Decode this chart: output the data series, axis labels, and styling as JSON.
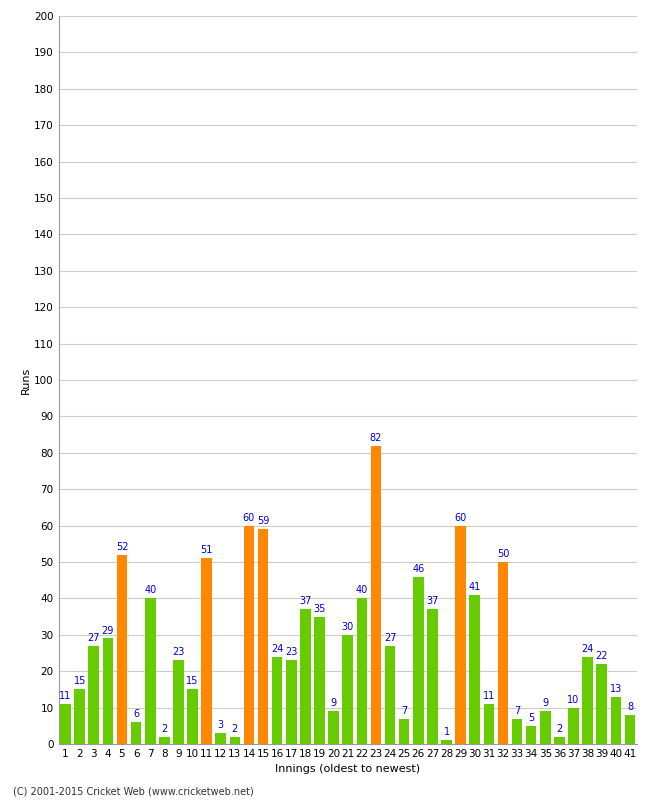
{
  "title": "",
  "xlabel": "Innings (oldest to newest)",
  "ylabel": "Runs",
  "footer": "(C) 2001-2015 Cricket Web (www.cricketweb.net)",
  "ylim": [
    0,
    200
  ],
  "yticks": [
    0,
    10,
    20,
    30,
    40,
    50,
    60,
    70,
    80,
    90,
    100,
    110,
    120,
    130,
    140,
    150,
    160,
    170,
    180,
    190,
    200
  ],
  "innings": [
    1,
    2,
    3,
    4,
    5,
    6,
    7,
    8,
    9,
    10,
    11,
    12,
    13,
    14,
    15,
    16,
    17,
    18,
    19,
    20,
    21,
    22,
    23,
    24,
    25,
    26,
    27,
    28,
    29,
    30,
    31,
    32,
    33,
    34,
    35,
    36,
    37,
    38,
    39,
    40,
    41
  ],
  "values": [
    11,
    15,
    27,
    29,
    52,
    6,
    40,
    2,
    23,
    15,
    51,
    3,
    2,
    60,
    59,
    24,
    23,
    37,
    35,
    9,
    30,
    40,
    82,
    27,
    7,
    46,
    37,
    1,
    60,
    41,
    11,
    50,
    7,
    5,
    9,
    2,
    10,
    24,
    22,
    13,
    8
  ],
  "colors": [
    "#66cc00",
    "#66cc00",
    "#66cc00",
    "#66cc00",
    "#ff8800",
    "#66cc00",
    "#66cc00",
    "#66cc00",
    "#66cc00",
    "#66cc00",
    "#ff8800",
    "#66cc00",
    "#66cc00",
    "#ff8800",
    "#ff8800",
    "#66cc00",
    "#66cc00",
    "#66cc00",
    "#66cc00",
    "#66cc00",
    "#66cc00",
    "#66cc00",
    "#ff8800",
    "#66cc00",
    "#66cc00",
    "#66cc00",
    "#66cc00",
    "#66cc00",
    "#ff8800",
    "#66cc00",
    "#66cc00",
    "#ff8800",
    "#66cc00",
    "#66cc00",
    "#66cc00",
    "#66cc00",
    "#66cc00",
    "#66cc00",
    "#66cc00",
    "#66cc00",
    "#66cc00"
  ],
  "label_color": "#0000cc",
  "background_color": "#ffffff",
  "grid_color": "#cccccc",
  "bar_width": 0.75,
  "axis_fontsize": 8,
  "tick_fontsize": 7.5,
  "label_fontsize": 7,
  "footer_fontsize": 7
}
